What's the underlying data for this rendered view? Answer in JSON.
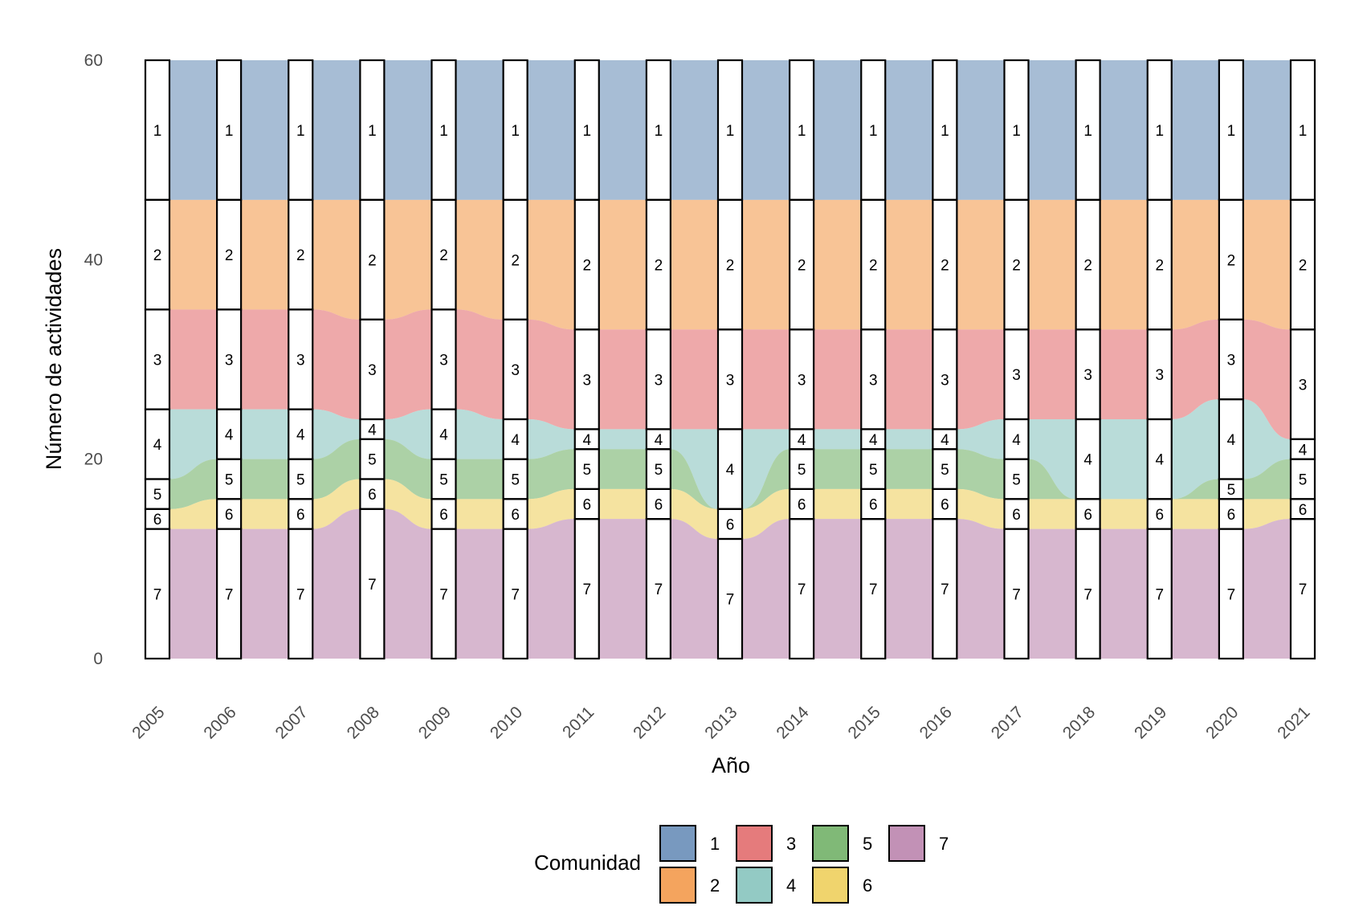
{
  "chart_data": {
    "type": "alluvial",
    "title": "",
    "xlabel": "Año",
    "ylabel": "Número de actividades",
    "ylim": [
      0,
      60
    ],
    "yticks": [
      0,
      20,
      40,
      60
    ],
    "categories": [
      "2005",
      "2006",
      "2007",
      "2008",
      "2009",
      "2010",
      "2011",
      "2012",
      "2013",
      "2014",
      "2015",
      "2016",
      "2017",
      "2018",
      "2019",
      "2020",
      "2021"
    ],
    "legend": {
      "title": "Comunidad",
      "position": "bottom"
    },
    "colors": {
      "1": "#7899BF",
      "2": "#F4A45E",
      "3": "#E57B7C",
      "4": "#93CAC4",
      "5": "#80B977",
      "6": "#F0D46D",
      "7": "#C291B6"
    },
    "stack_order": [
      "1",
      "2",
      "3",
      "4",
      "5",
      "6",
      "7"
    ],
    "series": [
      {
        "name": "1",
        "values": [
          14,
          14,
          14,
          14,
          14,
          14,
          14,
          14,
          14,
          14,
          14,
          14,
          14,
          14,
          14,
          14,
          14
        ]
      },
      {
        "name": "2",
        "values": [
          11,
          11,
          11,
          12,
          11,
          12,
          13,
          13,
          13,
          13,
          13,
          13,
          13,
          13,
          13,
          12,
          13
        ]
      },
      {
        "name": "3",
        "values": [
          10,
          10,
          10,
          10,
          10,
          10,
          10,
          10,
          10,
          10,
          10,
          10,
          9,
          9,
          9,
          8,
          11
        ]
      },
      {
        "name": "4",
        "values": [
          7,
          5,
          5,
          2,
          5,
          4,
          2,
          2,
          8,
          2,
          2,
          2,
          4,
          8,
          8,
          8,
          2
        ]
      },
      {
        "name": "5",
        "values": [
          3,
          4,
          4,
          4,
          4,
          4,
          4,
          4,
          0,
          4,
          4,
          4,
          4,
          0,
          0,
          2,
          4
        ]
      },
      {
        "name": "6",
        "values": [
          2,
          3,
          3,
          3,
          3,
          3,
          3,
          3,
          3,
          3,
          3,
          3,
          3,
          3,
          3,
          3,
          2
        ]
      },
      {
        "name": "7",
        "values": [
          13,
          13,
          13,
          15,
          13,
          13,
          14,
          14,
          12,
          14,
          14,
          14,
          13,
          13,
          13,
          13,
          14
        ]
      }
    ],
    "stratum_labels": [
      "1",
      "2",
      "3",
      "4",
      "5",
      "6",
      "7"
    ]
  }
}
